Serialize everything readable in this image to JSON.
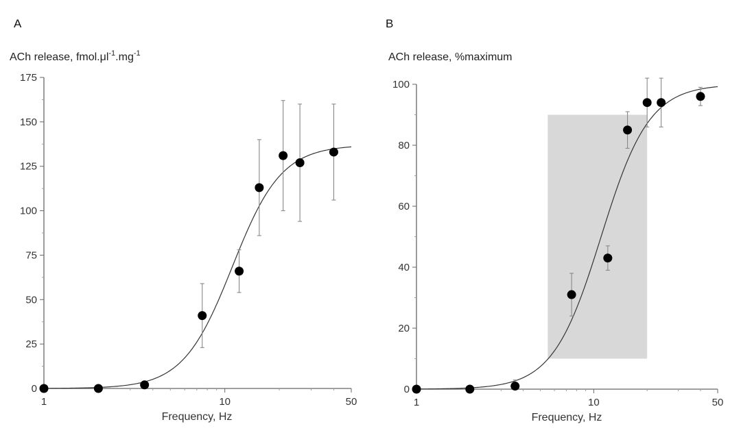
{
  "chart_data": [
    {
      "panel": "A",
      "type": "scatter",
      "ylabel": "ACh release, fmol.μl",
      "ylabel_sup1": "-1",
      "ylabel_mid": ".mg",
      "ylabel_sup2": "-1",
      "xlabel": "Frequency, Hz",
      "xscale": "log",
      "xlim": [
        1,
        50
      ],
      "ylim": [
        0,
        175
      ],
      "xticks": [
        1,
        10,
        50
      ],
      "xtick_labels": [
        "1",
        "10",
        "50"
      ],
      "yticks": [
        0,
        25,
        50,
        75,
        100,
        125,
        150,
        175
      ],
      "ytick_labels": [
        "0",
        "25",
        "50",
        "75",
        "100",
        "125",
        "150",
        "175"
      ],
      "points": [
        {
          "x": 1,
          "y": 0,
          "err": 0
        },
        {
          "x": 2,
          "y": 0,
          "err": 2
        },
        {
          "x": 3.6,
          "y": 2,
          "err": 2
        },
        {
          "x": 7.5,
          "y": 41,
          "err": 18
        },
        {
          "x": 12,
          "y": 66,
          "err": 12
        },
        {
          "x": 15.5,
          "y": 113,
          "err": 27
        },
        {
          "x": 21,
          "y": 131,
          "err": 31
        },
        {
          "x": 26,
          "y": 127,
          "err": 33
        },
        {
          "x": 40,
          "y": 133,
          "err": 27
        }
      ],
      "fit": {
        "model": "hill",
        "top": 137,
        "ec50": 11,
        "n": 3.2
      }
    },
    {
      "panel": "B",
      "type": "scatter",
      "ylabel": "ACh release, %maximum",
      "xlabel": "Frequency, Hz",
      "xscale": "log",
      "xlim": [
        1,
        50
      ],
      "ylim": [
        0,
        100
      ],
      "xticks": [
        1,
        10,
        50
      ],
      "xtick_labels": [
        "1",
        "10",
        "50"
      ],
      "yticks": [
        0,
        20,
        40,
        60,
        80,
        100
      ],
      "ytick_labels": [
        "0",
        "20",
        "40",
        "60",
        "80",
        "100"
      ],
      "shaded_region": {
        "x": [
          5.5,
          20
        ],
        "y": [
          10,
          90
        ]
      },
      "points": [
        {
          "x": 1,
          "y": 0,
          "err": 0
        },
        {
          "x": 2,
          "y": 0,
          "err": 1
        },
        {
          "x": 3.6,
          "y": 1,
          "err": 2
        },
        {
          "x": 7.5,
          "y": 31,
          "err": 7
        },
        {
          "x": 12,
          "y": 43,
          "err": 4
        },
        {
          "x": 15.5,
          "y": 85,
          "err": 6
        },
        {
          "x": 20,
          "y": 94,
          "err": 8
        },
        {
          "x": 24,
          "y": 94,
          "err": 8
        },
        {
          "x": 40,
          "y": 96,
          "err": 3
        }
      ],
      "fit": {
        "model": "hill",
        "top": 100,
        "ec50": 11,
        "n": 3.2
      }
    }
  ]
}
